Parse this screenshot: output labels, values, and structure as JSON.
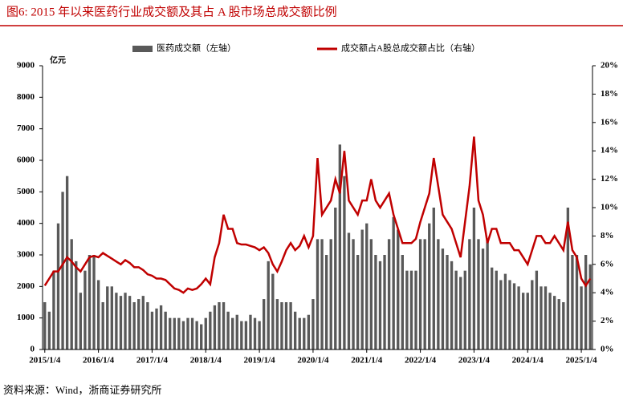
{
  "chart_data": {
    "type": "bar_line",
    "title": "图6:  2015 年以来医药行业成交额及其占 A 股市场总成交额比例",
    "y_unit": "亿元",
    "source": "资料来源：Wind，浙商证券研究所",
    "categories": [
      "2015/1/4",
      null,
      null,
      null,
      null,
      null,
      null,
      null,
      null,
      null,
      null,
      null,
      "2016/1/4",
      null,
      null,
      null,
      null,
      null,
      null,
      null,
      null,
      null,
      null,
      null,
      "2017/1/4",
      null,
      null,
      null,
      null,
      null,
      null,
      null,
      null,
      null,
      null,
      null,
      "2018/1/4",
      null,
      null,
      null,
      null,
      null,
      null,
      null,
      null,
      null,
      null,
      null,
      "2019/1/4",
      null,
      null,
      null,
      null,
      null,
      null,
      null,
      null,
      null,
      null,
      null,
      "2020/1/4",
      null,
      null,
      null,
      null,
      null,
      null,
      null,
      null,
      null,
      null,
      null,
      "2021/1/4",
      null,
      null,
      null,
      null,
      null,
      null,
      null,
      null,
      null,
      null,
      null,
      "2022/1/4",
      null,
      null,
      null,
      null,
      null,
      null,
      null,
      null,
      null,
      null,
      null,
      "2023/1/4",
      null,
      null,
      null,
      null,
      null,
      null,
      null,
      null,
      null,
      null,
      null,
      "2024/1/4",
      null,
      null,
      null,
      null,
      null,
      null,
      null,
      null,
      null,
      null,
      null,
      "2025/1/4",
      null,
      null
    ],
    "series": [
      {
        "name": "医药成交额（左轴）",
        "color": "#595959",
        "axis": "y",
        "values": [
          1500,
          1200,
          2500,
          4000,
          5000,
          5500,
          3500,
          2800,
          1800,
          2500,
          3000,
          3000,
          2200,
          1500,
          2000,
          2000,
          1800,
          1700,
          1800,
          1700,
          1500,
          1600,
          1700,
          1500,
          1200,
          1300,
          1400,
          1200,
          1000,
          1000,
          1000,
          900,
          1000,
          1000,
          900,
          800,
          1000,
          1200,
          1400,
          1500,
          1500,
          1200,
          1000,
          1100,
          900,
          900,
          1100,
          1000,
          900,
          1600,
          2800,
          2400,
          1600,
          1500,
          1500,
          1500,
          1200,
          1000,
          1000,
          1100,
          1600,
          3500,
          3500,
          3000,
          3500,
          4500,
          6500,
          5500,
          3700,
          3500,
          3000,
          3800,
          4000,
          3500,
          3000,
          2800,
          3000,
          3500,
          4200,
          3800,
          3000,
          2500,
          2500,
          2500,
          3500,
          3500,
          4000,
          4500,
          3500,
          3200,
          3000,
          2800,
          2500,
          2300,
          2500,
          3500,
          4500,
          3500,
          3200,
          3500,
          2600,
          2500,
          2200,
          2400,
          2200,
          2100,
          2000,
          1800,
          1800,
          2200,
          2500,
          2000,
          2000,
          1800,
          1700,
          1600,
          1500,
          4500,
          3000,
          3000,
          2000,
          3000,
          2700
        ]
      },
      {
        "name": "成交额占A股总成交额占比（右轴）",
        "color": "#c00000",
        "axis": "y2",
        "values": [
          4.5,
          5,
          5.5,
          5.5,
          6,
          6.5,
          6.2,
          5.8,
          5.5,
          6,
          6.5,
          6.6,
          6.5,
          6.8,
          6.6,
          6.4,
          6.2,
          6,
          6.3,
          6.1,
          5.8,
          5.8,
          5.6,
          5.3,
          5.2,
          5,
          5,
          4.9,
          4.6,
          4.3,
          4.2,
          4,
          4.3,
          4.2,
          4.3,
          4.6,
          5,
          4.6,
          6.5,
          7.5,
          9.5,
          8.5,
          8.5,
          7.5,
          7.4,
          7.4,
          7.3,
          7.2,
          7,
          7.2,
          6.8,
          6,
          5.5,
          6.2,
          7,
          7.5,
          7,
          7.3,
          8,
          7.2,
          8,
          13.5,
          9.5,
          10,
          10.5,
          12,
          11,
          14,
          10.5,
          10,
          9.5,
          10.5,
          10.5,
          12,
          10.5,
          10,
          10.5,
          11,
          9.5,
          8.5,
          7.5,
          7.5,
          7.5,
          7.8,
          9,
          10,
          11,
          13.5,
          11.5,
          9.5,
          9,
          8.5,
          7.5,
          6.5,
          9,
          11.5,
          15,
          10.5,
          9.5,
          7.5,
          8.5,
          8.5,
          7.5,
          7.5,
          7.5,
          7,
          7,
          6.5,
          6,
          7,
          8,
          8,
          7.5,
          7.5,
          8,
          7.5,
          7,
          9,
          7,
          6.5,
          5,
          4.5,
          5
        ]
      }
    ],
    "ylim": [
      0,
      9000
    ],
    "yticks": [
      0,
      1000,
      2000,
      3000,
      4000,
      5000,
      6000,
      7000,
      8000,
      9000
    ],
    "y2lim": [
      0,
      20
    ],
    "y2ticks": [
      {
        "value": 0,
        "label": "0%"
      },
      {
        "value": 2,
        "label": "2%"
      },
      {
        "value": 4,
        "label": "4%"
      },
      {
        "value": 6,
        "label": "6%"
      },
      {
        "value": 8,
        "label": "8%"
      },
      {
        "value": 10,
        "label": "10%"
      },
      {
        "value": 12,
        "label": "12%"
      },
      {
        "value": 14,
        "label": "14%"
      },
      {
        "value": 16,
        "label": "16%"
      },
      {
        "value": 18,
        "label": "18%"
      },
      {
        "value": 20,
        "label": "20%"
      }
    ]
  }
}
